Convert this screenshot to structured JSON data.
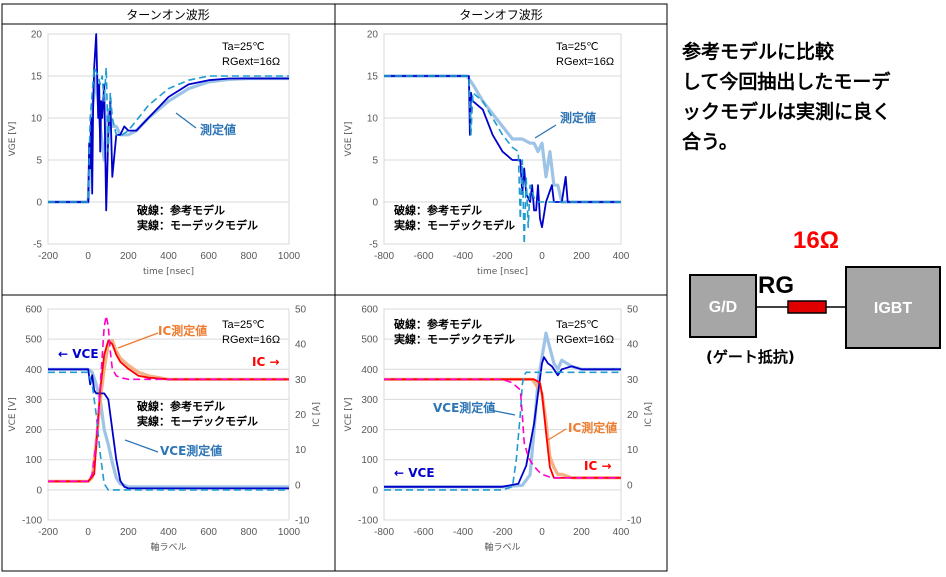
{
  "headers": {
    "left": "ターンオン波形",
    "right": "ターンオフ波形"
  },
  "side_note": [
    "参考モデルに比較",
    "して今回抽出したモーデ",
    "ックモデルは実測に良く",
    "合う。"
  ],
  "circuit": {
    "rg_value": "16Ω",
    "rg_label": "RG",
    "driver": "G/D",
    "device": "IGBT",
    "caption": "(ゲート抵抗)"
  },
  "colors": {
    "measured": "#9DC3E6",
    "measured_red": "#F4B183",
    "model_blue": "#0000CC",
    "ref_teal": "#1F9BCF",
    "ic_red": "#FF0000",
    "ic_magenta": "#FF00CC",
    "rg_value": "#FF0000",
    "block_fill": "#A6A6A6",
    "resistor": "#E00000"
  },
  "chart_data": [
    {
      "id": "vge_on",
      "type": "line",
      "xlabel": "time [nsec]",
      "ylabel": "VGE [V]",
      "xlim": [
        -200,
        1000
      ],
      "ylim": [
        -5,
        20
      ],
      "xticks": [
        "-200",
        "0",
        "200",
        "400",
        "600",
        "800",
        "1000"
      ],
      "yticks": [
        "-5",
        "0",
        "5",
        "10",
        "15",
        "20"
      ],
      "cond": [
        "Ta=25℃",
        "RGext=16Ω"
      ],
      "legend_lines": [
        "破線：参考モデル",
        "実線：モーデックモデル"
      ],
      "annotations": [
        {
          "text": "測定値",
          "color": "#2E75B6"
        }
      ],
      "series": [
        {
          "role": "measured",
          "x": [
            -200,
            0,
            20,
            40,
            60,
            80,
            100,
            120,
            140,
            160,
            200,
            240,
            300,
            400,
            500,
            600,
            700,
            800,
            900,
            1000
          ],
          "y": [
            0,
            0,
            11,
            15,
            9,
            5,
            11,
            9,
            9,
            8,
            8,
            8.5,
            10,
            12,
            13.5,
            14.3,
            14.6,
            14.7,
            14.7,
            14.7
          ]
        },
        {
          "role": "model",
          "x": [
            -200,
            0,
            5,
            10,
            15,
            20,
            25,
            30,
            40,
            50,
            55,
            60,
            65,
            70,
            80,
            90,
            100,
            110,
            120,
            140,
            160,
            180,
            200,
            240,
            300,
            400,
            500,
            600,
            700,
            800,
            900,
            1000
          ],
          "y": [
            0,
            0,
            7,
            4,
            10,
            1,
            12,
            16,
            20,
            10,
            14,
            6,
            12,
            10,
            14,
            -1,
            8,
            12,
            3,
            8,
            8,
            9,
            8.5,
            8.5,
            10,
            12.5,
            14,
            14.5,
            14.7,
            14.7,
            14.7,
            14.7
          ]
        },
        {
          "role": "ref",
          "x": [
            -200,
            0,
            10,
            30,
            50,
            60,
            70,
            80,
            90,
            100,
            110,
            120,
            130,
            140,
            150,
            170,
            200,
            250,
            300,
            400,
            500,
            600,
            700,
            800,
            900,
            1000
          ],
          "y": [
            0,
            0,
            10,
            16,
            15,
            14,
            15,
            12,
            16,
            6,
            13,
            10,
            9,
            8,
            8,
            8,
            8.5,
            10,
            11.5,
            13.5,
            14.5,
            15,
            15,
            15,
            15,
            15
          ]
        }
      ]
    },
    {
      "id": "vge_off",
      "type": "line",
      "xlabel": "time [nsec]",
      "ylabel": "VGE [V]",
      "xlim": [
        -800,
        400
      ],
      "ylim": [
        -5,
        20
      ],
      "xticks": [
        "-800",
        "-600",
        "-400",
        "-200",
        "0",
        "200",
        "400"
      ],
      "yticks": [
        "-5",
        "0",
        "5",
        "10",
        "15",
        "20"
      ],
      "cond": [
        "Ta=25℃",
        "RGext=16Ω"
      ],
      "legend_lines": [
        "破線：参考モデル",
        "実線：モーデックモデル"
      ],
      "annotations": [
        {
          "text": "測定値",
          "color": "#2E75B6"
        }
      ],
      "series": [
        {
          "role": "measured",
          "x": [
            -800,
            -380,
            -350,
            -300,
            -250,
            -200,
            -150,
            -100,
            -60,
            -40,
            -20,
            0,
            20,
            40,
            60,
            80,
            100,
            150,
            200,
            250,
            300,
            400
          ],
          "y": [
            15,
            15,
            14,
            12,
            10.5,
            9,
            7.5,
            7.5,
            7,
            7,
            6,
            7,
            3,
            6,
            2,
            2,
            0,
            0,
            0,
            0,
            0,
            0
          ]
        },
        {
          "role": "model",
          "x": [
            -800,
            -370,
            -365,
            -360,
            -350,
            -300,
            -250,
            -200,
            -150,
            -110,
            -100,
            -90,
            -80,
            -60,
            -50,
            -40,
            -30,
            -20,
            -10,
            0,
            20,
            50,
            60,
            100,
            120,
            130,
            150,
            200,
            250,
            300,
            400
          ],
          "y": [
            15,
            15,
            8,
            13,
            12,
            11,
            8,
            6,
            5,
            5,
            1,
            4,
            1,
            0,
            2,
            -1,
            -1,
            2,
            -2,
            -3,
            0,
            2,
            0,
            0,
            3,
            0,
            0,
            0,
            0,
            0,
            0
          ]
        },
        {
          "role": "ref",
          "x": [
            -800,
            -370,
            -360,
            -350,
            -300,
            -250,
            -200,
            -150,
            -120,
            -110,
            -100,
            -90,
            -80,
            -70,
            -60,
            -40,
            -20,
            0,
            50,
            100,
            150,
            200,
            300,
            400
          ],
          "y": [
            15,
            15,
            8,
            13,
            12,
            10,
            8,
            6.5,
            6,
            -2,
            5,
            -5,
            3,
            -3,
            2,
            0.5,
            0,
            0,
            0,
            0,
            0,
            0,
            0,
            0
          ]
        }
      ]
    },
    {
      "id": "vce_on",
      "type": "line",
      "xlabel": "軸ラベル",
      "ylabel": "VCE [V]",
      "y2label": "IC [A]",
      "xlim": [
        -200,
        1000
      ],
      "ylim": [
        -100,
        600
      ],
      "y2lim": [
        -10,
        50
      ],
      "xticks": [
        "-200",
        "0",
        "200",
        "400",
        "600",
        "800",
        "1000"
      ],
      "yticks": [
        "-100",
        "0",
        "100",
        "200",
        "300",
        "400",
        "500",
        "600"
      ],
      "y2ticks": [
        "-10",
        "0",
        "10",
        "20",
        "30",
        "40",
        "50"
      ],
      "cond": [
        "Ta=25℃",
        "RGext=16Ω"
      ],
      "legend_lines": [
        "破線：参考モデル",
        "実線：モーデックモデル"
      ],
      "annotations": [
        {
          "text": "IC測定値",
          "color": "#ED7D31"
        },
        {
          "text": "← VCE",
          "color": "#0000CC"
        },
        {
          "text": "IC →",
          "color": "#FF0000"
        },
        {
          "text": "VCE測定値",
          "color": "#2E75B6"
        }
      ],
      "series": [
        {
          "role": "measured",
          "axis": "y",
          "x": [
            -200,
            0,
            20,
            40,
            60,
            80,
            100,
            120,
            140,
            160,
            200,
            300,
            400,
            600,
            800,
            1000
          ],
          "y": [
            400,
            400,
            390,
            350,
            300,
            200,
            150,
            90,
            40,
            20,
            10,
            10,
            10,
            10,
            10,
            10
          ]
        },
        {
          "role": "measured_red",
          "axis": "y2",
          "x": [
            -200,
            0,
            20,
            40,
            60,
            80,
            100,
            120,
            140,
            160,
            200,
            250,
            300,
            400,
            600,
            800,
            1000
          ],
          "y": [
            1,
            1,
            2,
            12,
            24,
            33,
            40,
            41,
            38,
            36,
            34,
            32,
            31,
            30,
            30,
            30,
            30
          ]
        },
        {
          "role": "model",
          "axis": "y",
          "x": [
            -200,
            0,
            10,
            20,
            30,
            40,
            60,
            80,
            100,
            110,
            120,
            140,
            160,
            180,
            200,
            250,
            300,
            400,
            600,
            800,
            1000
          ],
          "y": [
            400,
            400,
            350,
            380,
            330,
            320,
            320,
            320,
            300,
            250,
            200,
            100,
            30,
            10,
            5,
            5,
            5,
            5,
            5,
            5,
            5
          ]
        },
        {
          "role": "model_red",
          "axis": "y2",
          "x": [
            -200,
            0,
            30,
            60,
            80,
            100,
            120,
            140,
            160,
            200,
            250,
            300,
            400,
            600,
            800,
            1000
          ],
          "y": [
            1,
            1,
            3,
            27,
            37,
            41,
            40,
            37,
            35,
            33,
            31,
            30.5,
            30,
            30,
            30,
            30
          ]
        },
        {
          "role": "ref",
          "axis": "y",
          "x": [
            -200,
            0,
            20,
            40,
            60,
            80,
            100,
            120,
            140,
            160,
            200,
            300,
            600,
            1000
          ],
          "y": [
            390,
            390,
            350,
            250,
            120,
            20,
            0,
            0,
            0,
            0,
            0,
            0,
            0,
            0
          ]
        },
        {
          "role": "ref_red",
          "axis": "y2",
          "x": [
            -200,
            0,
            20,
            40,
            60,
            80,
            90,
            100,
            110,
            120,
            140,
            160,
            200,
            300,
            600,
            1000
          ],
          "y": [
            1,
            1,
            3,
            12,
            28,
            45,
            48,
            45,
            38,
            33,
            31,
            30.5,
            30,
            30,
            30,
            30
          ]
        }
      ]
    },
    {
      "id": "vce_off",
      "type": "line",
      "xlabel": "軸ラベル",
      "ylabel": "VCE [V]",
      "y2label": "IC [A]",
      "xlim": [
        -800,
        400
      ],
      "ylim": [
        -100,
        600
      ],
      "y2lim": [
        -10,
        50
      ],
      "xticks": [
        "-800",
        "-600",
        "-400",
        "-200",
        "0",
        "200",
        "400"
      ],
      "yticks": [
        "-100",
        "0",
        "100",
        "200",
        "300",
        "400",
        "500",
        "600"
      ],
      "y2ticks": [
        "-10",
        "0",
        "10",
        "20",
        "30",
        "40",
        "50"
      ],
      "cond": [
        "Ta=25℃",
        "RGext=16Ω"
      ],
      "legend_lines": [
        "破線：参考モデル",
        "実線：モーデックモデル"
      ],
      "annotations": [
        {
          "text": "VCE測定値",
          "color": "#2E75B6"
        },
        {
          "text": "IC測定値",
          "color": "#ED7D31"
        },
        {
          "text": "← VCE",
          "color": "#0000CC"
        },
        {
          "text": "IC →",
          "color": "#FF0000"
        }
      ],
      "series": [
        {
          "role": "measured",
          "axis": "y",
          "x": [
            -800,
            -200,
            -100,
            -60,
            -40,
            -20,
            0,
            20,
            40,
            60,
            80,
            100,
            150,
            200,
            300,
            400
          ],
          "y": [
            10,
            10,
            15,
            50,
            200,
            360,
            440,
            520,
            470,
            420,
            400,
            430,
            410,
            400,
            400,
            400
          ]
        },
        {
          "role": "measured_red",
          "axis": "y2",
          "x": [
            -800,
            -400,
            -200,
            -50,
            0,
            20,
            40,
            60,
            80,
            100,
            150,
            200,
            300,
            400
          ],
          "y": [
            30,
            30,
            30,
            30,
            26,
            18,
            8,
            5,
            3,
            3,
            2,
            2,
            2,
            2
          ]
        },
        {
          "role": "model",
          "axis": "y",
          "x": [
            -800,
            -200,
            -120,
            -80,
            -40,
            -10,
            0,
            10,
            30,
            50,
            80,
            100,
            150,
            200,
            300,
            400
          ],
          "y": [
            10,
            10,
            20,
            80,
            220,
            370,
            420,
            440,
            420,
            410,
            380,
            400,
            410,
            400,
            400,
            400
          ]
        },
        {
          "role": "model_red",
          "axis": "y2",
          "x": [
            -800,
            -200,
            -40,
            -10,
            0,
            20,
            40,
            60,
            100,
            200,
            400
          ],
          "y": [
            30,
            30,
            30,
            29,
            26,
            15,
            5,
            2,
            2,
            2,
            2
          ]
        },
        {
          "role": "ref",
          "axis": "y",
          "x": [
            -800,
            -200,
            -150,
            -130,
            -110,
            -100,
            -90,
            -80,
            -60,
            -40,
            0,
            50,
            100,
            200,
            300,
            400
          ],
          "y": [
            0,
            0,
            10,
            100,
            250,
            350,
            380,
            390,
            390,
            390,
            390,
            390,
            390,
            390,
            390,
            390
          ]
        },
        {
          "role": "ref_red",
          "axis": "y2",
          "x": [
            -800,
            -200,
            -150,
            -110,
            -100,
            -90,
            -70,
            -50,
            -20,
            0,
            50,
            100,
            200,
            400
          ],
          "y": [
            30,
            30,
            29,
            27,
            20,
            12,
            8,
            6,
            4,
            3,
            2,
            2,
            2,
            2
          ]
        }
      ]
    }
  ]
}
